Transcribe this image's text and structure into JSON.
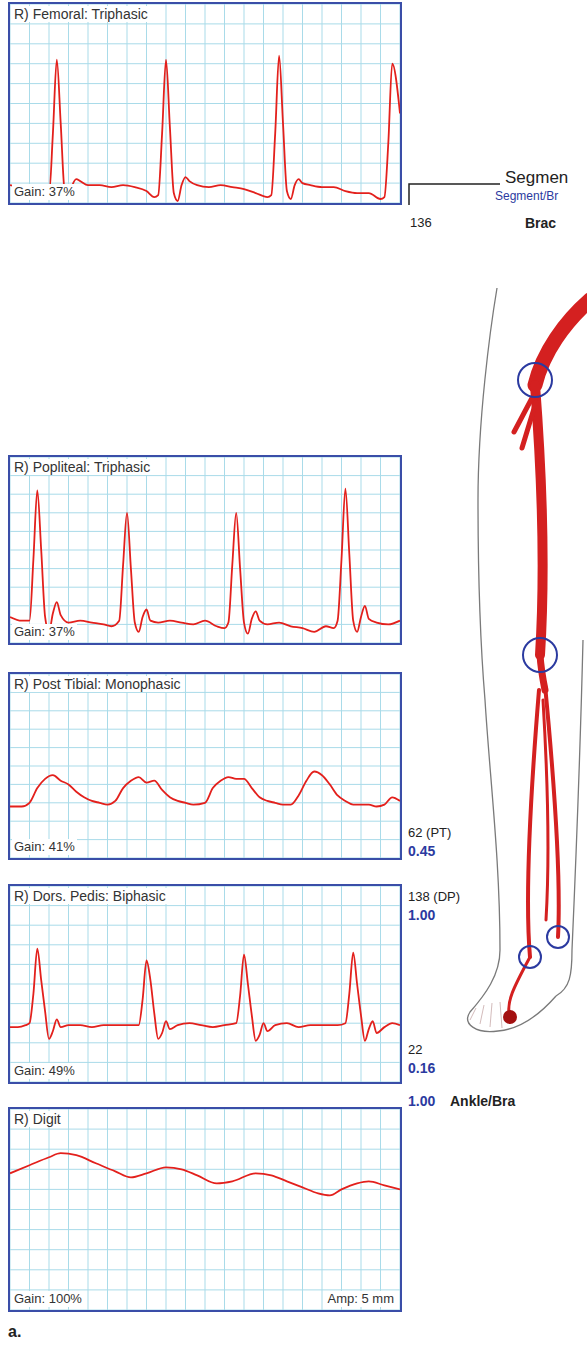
{
  "chart_data": [
    {
      "type": "line",
      "title": "R) Femoral: Triphasic",
      "annotations": [
        "Gain: 37%"
      ],
      "x": [
        0,
        3,
        6,
        9,
        10,
        11,
        12,
        13,
        14,
        15,
        16,
        17,
        18,
        20,
        23,
        26,
        29,
        32,
        35,
        37,
        38,
        39,
        40,
        41,
        42,
        43,
        44,
        45,
        46,
        48,
        51,
        54,
        57,
        60,
        63,
        66,
        67,
        68,
        69,
        70,
        71,
        72,
        73,
        74,
        75,
        77,
        80,
        83,
        86,
        89,
        92,
        95,
        96,
        97,
        98,
        100
      ],
      "values": [
        9,
        8,
        9,
        5,
        4,
        35,
        72,
        40,
        6,
        2,
        9,
        12,
        11,
        9,
        9,
        8,
        9,
        8,
        6,
        3,
        4,
        35,
        72,
        38,
        5,
        1,
        9,
        13,
        11,
        9,
        8,
        9,
        8,
        7,
        5,
        3,
        4,
        35,
        74,
        40,
        6,
        2,
        9,
        12,
        10,
        9,
        8,
        8,
        6,
        5,
        5,
        2,
        3,
        30,
        70,
        45
      ],
      "color": "#e3201c",
      "xlim": [
        0,
        100
      ],
      "ylim": [
        0,
        100
      ],
      "xticks": [
        0,
        5,
        10,
        15,
        20,
        25,
        30,
        35,
        40,
        45,
        50,
        55,
        60,
        65,
        70,
        75,
        80,
        85,
        90,
        95,
        100
      ],
      "yticks": [
        0,
        10,
        20,
        30,
        40,
        50,
        60,
        70,
        80,
        90,
        100
      ],
      "grid": true,
      "tick_labels": false
    },
    {
      "type": "line",
      "title": "R) Popliteal: Triphasic",
      "annotations": [
        "Gain: 37%"
      ],
      "x": [
        0,
        3,
        5,
        6,
        7,
        8,
        9,
        10,
        11,
        12,
        13,
        15,
        18,
        21,
        24,
        26,
        28,
        29,
        30,
        31,
        32,
        33,
        34,
        35,
        36,
        38,
        41,
        44,
        47,
        50,
        53,
        55,
        56,
        57,
        58,
        59,
        60,
        61,
        62,
        63,
        64,
        66,
        69,
        72,
        75,
        78,
        81,
        83,
        84,
        85,
        86,
        87,
        88,
        89,
        90,
        91,
        92,
        94,
        97,
        100
      ],
      "values": [
        14,
        12,
        12,
        45,
        82,
        50,
        14,
        6,
        16,
        22,
        15,
        11,
        12,
        11,
        10,
        9,
        12,
        42,
        70,
        40,
        11,
        6,
        14,
        18,
        12,
        11,
        12,
        11,
        10,
        12,
        9,
        8,
        11,
        42,
        70,
        40,
        11,
        5,
        13,
        17,
        12,
        10,
        11,
        9,
        8,
        6,
        9,
        8,
        12,
        45,
        83,
        48,
        12,
        6,
        14,
        20,
        13,
        11,
        10,
        12
      ],
      "color": "#e3201c",
      "xlim": [
        0,
        100
      ],
      "ylim": [
        0,
        100
      ],
      "xticks": [
        0,
        5,
        10,
        15,
        20,
        25,
        30,
        35,
        40,
        45,
        50,
        55,
        60,
        65,
        70,
        75,
        80,
        85,
        90,
        95,
        100
      ],
      "yticks": [
        0,
        10,
        20,
        30,
        40,
        50,
        60,
        70,
        80,
        90,
        100
      ],
      "grid": true,
      "tick_labels": false
    },
    {
      "type": "line",
      "title": "R) Post Tibial: Monophasic",
      "annotations": [
        "Gain: 41%"
      ],
      "x": [
        0,
        3,
        5,
        7,
        9,
        11,
        13,
        15,
        17,
        19,
        21,
        23,
        25,
        27,
        29,
        31,
        33,
        35,
        37,
        39,
        41,
        43,
        45,
        47,
        50,
        52,
        54,
        56,
        58,
        60,
        62,
        64,
        66,
        68,
        70,
        72,
        74,
        76,
        78,
        80,
        82,
        84,
        86,
        88,
        90,
        92,
        94,
        96,
        98,
        100
      ],
      "values": [
        28,
        28,
        30,
        38,
        43,
        45,
        42,
        40,
        36,
        33,
        31,
        30,
        29,
        31,
        38,
        42,
        44,
        41,
        42,
        37,
        33,
        31,
        30,
        29,
        30,
        38,
        42,
        44,
        43,
        43,
        38,
        33,
        31,
        30,
        29,
        29,
        34,
        42,
        47,
        45,
        40,
        34,
        31,
        29,
        29,
        29,
        28,
        29,
        33,
        31
      ],
      "color": "#e3201c",
      "xlim": [
        0,
        100
      ],
      "ylim": [
        0,
        100
      ],
      "xticks": [
        0,
        5,
        10,
        15,
        20,
        25,
        30,
        35,
        40,
        45,
        50,
        55,
        60,
        65,
        70,
        75,
        80,
        85,
        90,
        95,
        100
      ],
      "yticks": [
        0,
        10,
        20,
        30,
        40,
        50,
        60,
        70,
        80,
        90,
        100
      ],
      "grid": true,
      "tick_labels": false
    },
    {
      "type": "line",
      "title": "R) Dors. Pedis: Biphasic",
      "annotations": [
        "Gain: 49%"
      ],
      "x": [
        0,
        2,
        4,
        5,
        6,
        7,
        8,
        9,
        10,
        11,
        12,
        13,
        15,
        18,
        21,
        24,
        27,
        30,
        33,
        34,
        35,
        36,
        37,
        38,
        39,
        40,
        41,
        43,
        46,
        49,
        52,
        55,
        58,
        59,
        60,
        61,
        62,
        63,
        64,
        65,
        66,
        68,
        71,
        74,
        77,
        80,
        84,
        86,
        87,
        88,
        89,
        90,
        91,
        92,
        93,
        94,
        96,
        98,
        100
      ],
      "values": [
        28,
        28,
        29,
        30,
        45,
        68,
        52,
        36,
        22,
        26,
        32,
        28,
        29,
        29,
        28,
        29,
        29,
        29,
        29,
        42,
        62,
        52,
        35,
        22,
        25,
        31,
        27,
        29,
        30,
        29,
        28,
        29,
        30,
        44,
        65,
        50,
        34,
        21,
        24,
        30,
        26,
        29,
        30,
        28,
        29,
        29,
        29,
        30,
        45,
        66,
        50,
        34,
        21,
        27,
        31,
        25,
        28,
        30,
        29
      ],
      "color": "#e3201c",
      "xlim": [
        0,
        100
      ],
      "ylim": [
        0,
        100
      ],
      "xticks": [
        0,
        5,
        10,
        15,
        20,
        25,
        30,
        35,
        40,
        45,
        50,
        55,
        60,
        65,
        70,
        75,
        80,
        85,
        90,
        95,
        100
      ],
      "yticks": [
        0,
        10,
        20,
        30,
        40,
        50,
        60,
        70,
        80,
        90,
        100
      ],
      "grid": true,
      "tick_labels": false
    },
    {
      "type": "line",
      "title": "R) Digit",
      "annotations": [
        "Gain: 100%",
        "Amp: 5 mm"
      ],
      "x": [
        0,
        5,
        10,
        13,
        17,
        22,
        27,
        31,
        35,
        40,
        44,
        48,
        53,
        57,
        63,
        67,
        71,
        75,
        79,
        82,
        85,
        89,
        92,
        96,
        100
      ],
      "values": [
        68,
        72,
        76,
        78,
        77,
        73,
        69,
        66,
        68,
        71,
        70,
        67,
        63,
        64,
        68,
        67,
        64,
        61,
        58,
        57,
        60,
        63,
        64,
        62,
        60
      ],
      "color": "#e3201c",
      "xlim": [
        0,
        100
      ],
      "ylim": [
        0,
        100
      ],
      "xticks": [
        0,
        5,
        10,
        15,
        20,
        25,
        30,
        35,
        40,
        45,
        50,
        55,
        60,
        65,
        70,
        75,
        80,
        85,
        90,
        95,
        100
      ],
      "yticks": [
        0,
        10,
        20,
        30,
        40,
        50,
        60,
        70,
        80,
        90,
        100
      ],
      "grid": true,
      "tick_labels": false
    }
  ],
  "diagram": {
    "segment": "Segmen",
    "segment_sub": "Segment/Br",
    "brachial_value": "136",
    "brachial": "Brac",
    "pt_pressure": "62 (PT)",
    "pt_index": "0.45",
    "dp_pressure": "138 (DP)",
    "dp_index": "1.00",
    "digit_pressure": "22",
    "digit_index": "0.16",
    "abi": "1.00",
    "abi_label": "Ankle/Bra",
    "panel_letter": "a."
  }
}
